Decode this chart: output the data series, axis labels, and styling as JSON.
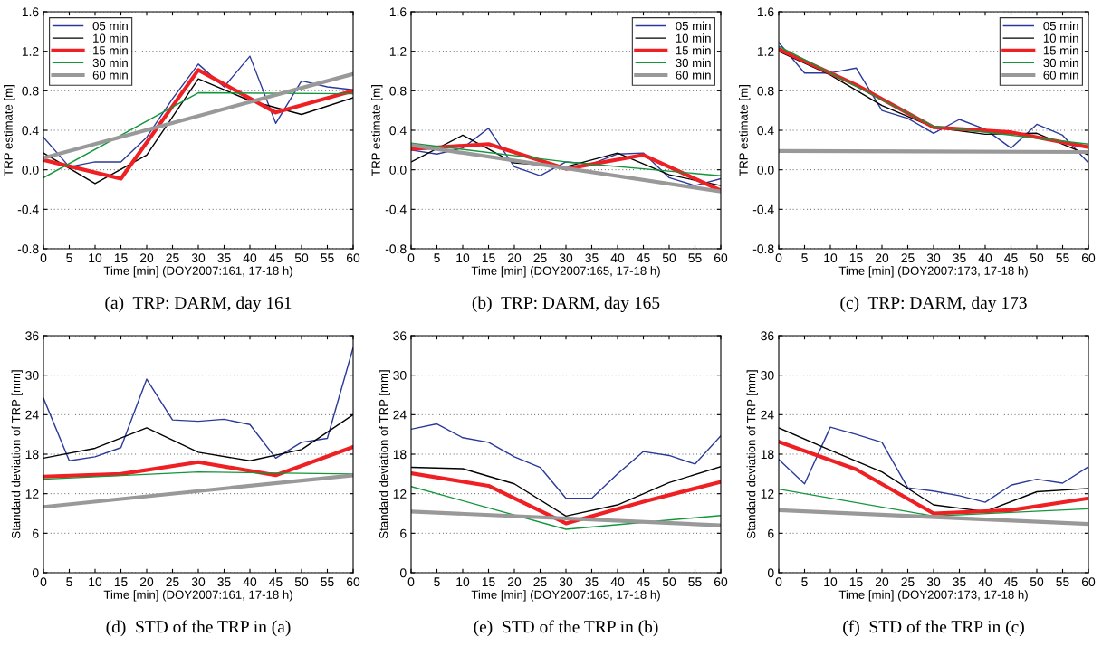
{
  "chart_data": [
    {
      "type": "line",
      "title": "(a)  TRP: DARM, day 161",
      "xlabel": "Time [min] (DOY2007:161, 17-18 h)",
      "ylabel": "TRP estimate [m]",
      "xlim": [
        0,
        60
      ],
      "ylim": [
        -0.8,
        1.6
      ],
      "xticks": [
        0,
        5,
        10,
        15,
        20,
        25,
        30,
        35,
        40,
        45,
        50,
        55,
        60
      ],
      "yticks": [
        {
          "value": -0.8,
          "label": "-0.8"
        },
        {
          "value": -0.4,
          "label": "-0.4"
        },
        {
          "value": 0.0,
          "label": "0.0"
        },
        0.4,
        0.8,
        1.2,
        1.6
      ],
      "grid": "y",
      "legend": "top left",
      "series": [
        {
          "name": "05 min",
          "color": "#2b3a9a",
          "x": [
            0,
            5,
            10,
            15,
            20,
            25,
            30,
            35,
            40,
            45,
            50,
            55,
            60
          ],
          "values": [
            0.33,
            0.03,
            0.08,
            0.08,
            0.33,
            0.72,
            1.07,
            0.84,
            1.15,
            0.47,
            0.9,
            0.84,
            0.81
          ]
        },
        {
          "name": "10 min",
          "color": "#000000",
          "x": [
            0,
            10,
            20,
            30,
            40,
            50,
            60
          ],
          "values": [
            0.17,
            -0.14,
            0.15,
            0.92,
            0.7,
            0.56,
            0.73
          ]
        },
        {
          "name": "15 min",
          "color": "#ee2024",
          "x": [
            0,
            15,
            30,
            45,
            60
          ],
          "values": [
            0.1,
            -0.09,
            1.01,
            0.58,
            0.8
          ]
        },
        {
          "name": "30 min",
          "color": "#12963c",
          "x": [
            0,
            30,
            60
          ],
          "values": [
            -0.08,
            0.78,
            0.77
          ]
        },
        {
          "name": "60 min",
          "color": "#999999",
          "x": [
            0,
            60
          ],
          "values": [
            0.12,
            0.97
          ]
        }
      ]
    },
    {
      "type": "line",
      "title": "(b)  TRP: DARM, day 165",
      "xlabel": "Time [min] (DOY2007:165, 17-18 h)",
      "ylabel": "TRP estimate [m]",
      "xlim": [
        0,
        60
      ],
      "ylim": [
        -0.8,
        1.6
      ],
      "xticks": [
        0,
        5,
        10,
        15,
        20,
        25,
        30,
        35,
        40,
        45,
        50,
        55,
        60
      ],
      "yticks": [
        {
          "value": -0.8,
          "label": "-0.8"
        },
        {
          "value": -0.4,
          "label": "-0.4"
        },
        {
          "value": 0.0,
          "label": "0.0"
        },
        0.4,
        0.8,
        1.2,
        1.6
      ],
      "grid": "y",
      "legend": "top right",
      "series": [
        {
          "name": "05 min",
          "color": "#2b3a9a",
          "x": [
            0,
            5,
            10,
            15,
            20,
            25,
            30,
            35,
            40,
            45,
            50,
            55,
            60
          ],
          "values": [
            0.2,
            0.16,
            0.22,
            0.42,
            0.03,
            -0.06,
            0.08,
            0.06,
            0.16,
            0.17,
            -0.08,
            -0.16,
            -0.09
          ]
        },
        {
          "name": "10 min",
          "color": "#000000",
          "x": [
            0,
            10,
            20,
            30,
            40,
            50,
            60
          ],
          "values": [
            0.08,
            0.35,
            0.07,
            0.03,
            0.17,
            -0.05,
            -0.16
          ]
        },
        {
          "name": "15 min",
          "color": "#ee2024",
          "x": [
            0,
            15,
            30,
            45,
            60
          ],
          "values": [
            0.21,
            0.26,
            0.01,
            0.15,
            -0.21
          ]
        },
        {
          "name": "30 min",
          "color": "#12963c",
          "x": [
            0,
            30,
            60
          ],
          "values": [
            0.27,
            0.08,
            -0.06
          ]
        },
        {
          "name": "60 min",
          "color": "#999999",
          "x": [
            0,
            60
          ],
          "values": [
            0.25,
            -0.22
          ]
        }
      ]
    },
    {
      "type": "line",
      "title": "(c)  TRP: DARM, day 173",
      "xlabel": "Time [min] (DOY2007:173, 17-18 h)",
      "ylabel": "TRP estimate [m]",
      "xlim": [
        0,
        60
      ],
      "ylim": [
        -0.8,
        1.6
      ],
      "xticks": [
        0,
        5,
        10,
        15,
        20,
        25,
        30,
        35,
        40,
        45,
        50,
        55,
        60
      ],
      "yticks": [
        {
          "value": -0.8,
          "label": "-0.8"
        },
        {
          "value": -0.4,
          "label": "-0.4"
        },
        {
          "value": 0.0,
          "label": "0.0"
        },
        0.4,
        0.8,
        1.2,
        1.6
      ],
      "grid": "y",
      "legend": "top right",
      "series": [
        {
          "name": "05 min",
          "color": "#2b3a9a",
          "x": [
            0,
            5,
            10,
            15,
            20,
            25,
            30,
            35,
            40,
            45,
            50,
            55,
            60
          ],
          "values": [
            1.29,
            0.98,
            0.98,
            1.03,
            0.6,
            0.52,
            0.37,
            0.51,
            0.41,
            0.22,
            0.46,
            0.35,
            0.07
          ]
        },
        {
          "name": "10 min",
          "color": "#000000",
          "x": [
            0,
            10,
            20,
            30,
            40,
            50,
            60
          ],
          "values": [
            1.2,
            0.96,
            0.65,
            0.43,
            0.36,
            0.37,
            0.15
          ]
        },
        {
          "name": "15 min",
          "color": "#ee2024",
          "x": [
            0,
            15,
            30,
            45,
            60
          ],
          "values": [
            1.22,
            0.86,
            0.43,
            0.38,
            0.23
          ]
        },
        {
          "name": "30 min",
          "color": "#12963c",
          "x": [
            0,
            30,
            60
          ],
          "values": [
            1.25,
            0.44,
            0.26
          ]
        },
        {
          "name": "60 min",
          "color": "#999999",
          "x": [
            0,
            60
          ],
          "values": [
            0.19,
            0.18
          ]
        }
      ]
    },
    {
      "type": "line",
      "title": "(d)  STD of the TRP in (a)",
      "xlabel": "Time [min] (DOY2007:161, 17-18 h)",
      "ylabel": "Standard deviation of TRP [mm]",
      "xlim": [
        0,
        60
      ],
      "ylim": [
        0,
        36
      ],
      "xticks": [
        0,
        5,
        10,
        15,
        20,
        25,
        30,
        35,
        40,
        45,
        50,
        55,
        60
      ],
      "yticks": [
        0,
        6,
        12,
        18,
        24,
        30,
        36
      ],
      "grid": "y",
      "series": [
        {
          "color": "#2b3a9a",
          "x": [
            0,
            5,
            10,
            15,
            20,
            25,
            30,
            35,
            40,
            45,
            50,
            55,
            60
          ],
          "values": [
            26.5,
            17.0,
            17.6,
            19.0,
            29.4,
            23.2,
            23.0,
            23.3,
            22.5,
            17.4,
            19.8,
            20.4,
            34.2
          ]
        },
        {
          "color": "#000000",
          "x": [
            0,
            10,
            20,
            30,
            40,
            50,
            60
          ],
          "values": [
            17.4,
            18.9,
            22.0,
            18.3,
            17.0,
            18.7,
            24.0
          ]
        },
        {
          "color": "#ee2024",
          "x": [
            0,
            15,
            30,
            45,
            60
          ],
          "values": [
            14.6,
            15.0,
            16.8,
            14.8,
            19.1
          ]
        },
        {
          "color": "#12963c",
          "x": [
            0,
            30,
            60
          ],
          "values": [
            14.2,
            15.3,
            15.0
          ]
        },
        {
          "color": "#999999",
          "x": [
            0,
            60
          ],
          "values": [
            10.0,
            14.8
          ]
        }
      ]
    },
    {
      "type": "line",
      "title": "(e)  STD of the TRP in (b)",
      "xlabel": "Time [min] (DOY2007:165, 17-18 h)",
      "ylabel": "Standard deviation of TRP [mm]",
      "xlim": [
        0,
        60
      ],
      "ylim": [
        0,
        36
      ],
      "xticks": [
        0,
        5,
        10,
        15,
        20,
        25,
        30,
        35,
        40,
        45,
        50,
        55,
        60
      ],
      "yticks": [
        0,
        6,
        12,
        18,
        24,
        30,
        36
      ],
      "grid": "y",
      "series": [
        {
          "color": "#2b3a9a",
          "x": [
            0,
            5,
            10,
            15,
            20,
            25,
            30,
            35,
            40,
            45,
            50,
            55,
            60
          ],
          "values": [
            21.8,
            22.6,
            20.5,
            19.8,
            17.6,
            16.0,
            11.3,
            11.3,
            15.0,
            18.4,
            17.8,
            16.5,
            20.8
          ]
        },
        {
          "color": "#000000",
          "x": [
            0,
            10,
            20,
            30,
            40,
            50,
            60
          ],
          "values": [
            16.0,
            15.8,
            13.5,
            8.6,
            10.3,
            13.7,
            16.1
          ]
        },
        {
          "color": "#ee2024",
          "x": [
            0,
            15,
            30,
            45,
            60
          ],
          "values": [
            15.1,
            13.2,
            7.5,
            10.8,
            13.8
          ]
        },
        {
          "color": "#12963c",
          "x": [
            0,
            30,
            60
          ],
          "values": [
            13.1,
            6.6,
            8.7
          ]
        },
        {
          "color": "#999999",
          "x": [
            0,
            60
          ],
          "values": [
            9.3,
            7.2
          ]
        }
      ]
    },
    {
      "type": "line",
      "title": "(f)  STD of the TRP in (c)",
      "xlabel": "Time [min] (DOY2007:173, 17-18 h)",
      "ylabel": "Standard deviation of TRP [mm]",
      "xlim": [
        0,
        60
      ],
      "ylim": [
        0,
        36
      ],
      "xticks": [
        0,
        5,
        10,
        15,
        20,
        25,
        30,
        35,
        40,
        45,
        50,
        55,
        60
      ],
      "yticks": [
        0,
        6,
        12,
        18,
        24,
        30,
        36
      ],
      "grid": "y",
      "series": [
        {
          "color": "#2b3a9a",
          "x": [
            0,
            5,
            10,
            15,
            20,
            25,
            30,
            35,
            40,
            45,
            50,
            55,
            60
          ],
          "values": [
            17.2,
            13.5,
            22.1,
            21.0,
            19.8,
            12.9,
            12.4,
            11.7,
            10.7,
            13.3,
            14.2,
            13.6,
            16.1
          ]
        },
        {
          "color": "#000000",
          "x": [
            0,
            10,
            20,
            30,
            40,
            50,
            60
          ],
          "values": [
            22.0,
            18.6,
            15.3,
            10.3,
            9.3,
            12.3,
            12.8
          ]
        },
        {
          "color": "#ee2024",
          "x": [
            0,
            15,
            30,
            45,
            60
          ],
          "values": [
            19.9,
            15.7,
            9.0,
            9.5,
            11.3
          ]
        },
        {
          "color": "#12963c",
          "x": [
            0,
            30,
            60
          ],
          "values": [
            12.7,
            8.6,
            9.7
          ]
        },
        {
          "color": "#999999",
          "x": [
            0,
            60
          ],
          "values": [
            9.5,
            7.4
          ]
        }
      ]
    }
  ]
}
